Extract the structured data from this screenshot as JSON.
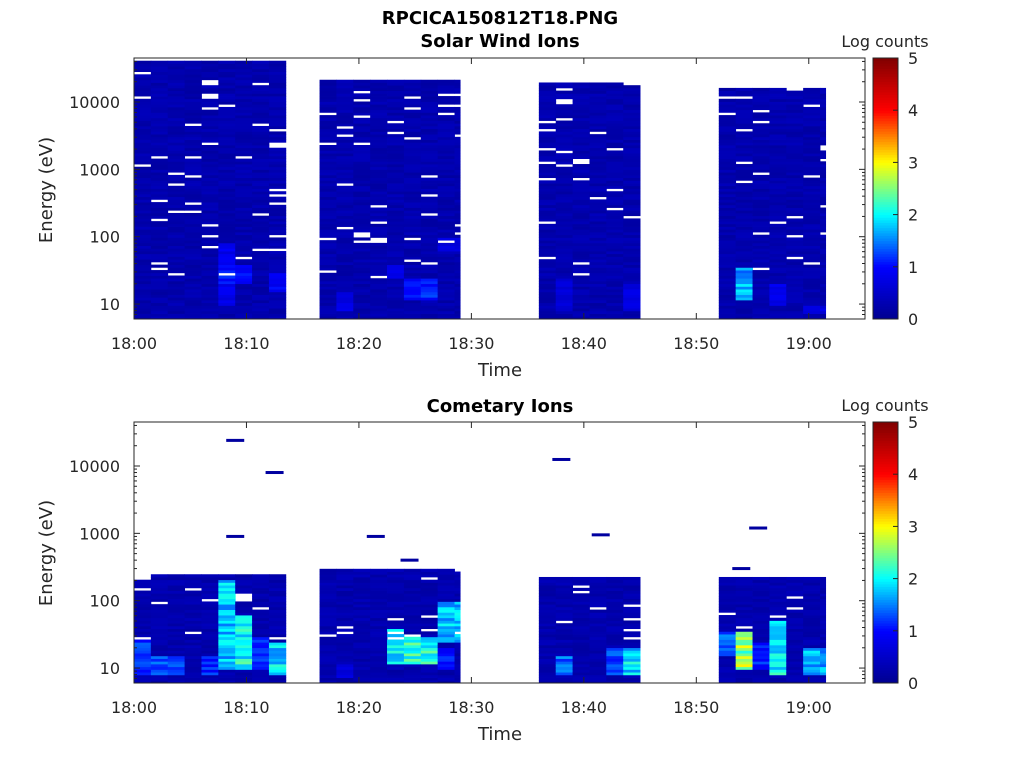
{
  "figure_title": "RPCICA150812T18.PNG",
  "colorscale": [
    "#00008f",
    "#0000ff",
    "#00ffff",
    "#ffff00",
    "#ff0000",
    "#800000"
  ],
  "chart_data": [
    {
      "type": "heatmap",
      "title": "Solar Wind Ions",
      "xlabel": "Time",
      "ylabel": "Energy (eV)",
      "yscale": "log",
      "ylim": [
        6,
        45000
      ],
      "xlim": [
        "18:00",
        "19:05"
      ],
      "xticks": [
        "18:00",
        "18:10",
        "18:20",
        "18:30",
        "18:40",
        "18:50",
        "19:00"
      ],
      "yticks": [
        "10",
        "100",
        "1000",
        "10000"
      ],
      "colorbar": {
        "label": "Log counts",
        "range": [
          0,
          5
        ],
        "ticks": [
          "0",
          "1",
          "2",
          "3",
          "4",
          "5"
        ]
      },
      "data_segments": [
        {
          "start": "18:00",
          "end": "18:13.5",
          "emax": 40000
        },
        {
          "start": "18:16.5",
          "end": "18:29",
          "emax": 22000
        },
        {
          "start": "18:36",
          "end": "18:45",
          "emax": 20000
        },
        {
          "start": "18:52",
          "end": "19:01.5",
          "emax": 16000
        }
      ],
      "background_log_counts": 0.15,
      "enhancements": [
        {
          "time": "18:08",
          "energy": [
            10,
            80
          ],
          "log_counts": 0.9
        },
        {
          "time": "18:09",
          "energy": [
            20,
            40
          ],
          "log_counts": 1.1
        },
        {
          "time": "18:12.5",
          "energy": [
            15,
            30
          ],
          "log_counts": 1.0
        },
        {
          "time": "18:18.5",
          "energy": [
            8,
            15
          ],
          "log_counts": 0.8
        },
        {
          "time": "18:23.5",
          "energy": [
            25,
            40
          ],
          "log_counts": 0.9
        },
        {
          "time": "18:25.5",
          "energy": [
            12,
            25
          ],
          "log_counts": 1.2
        },
        {
          "time": "18:28.5",
          "energy": [
            60,
            100
          ],
          "log_counts": 0.8
        },
        {
          "time": "18:38.5",
          "energy": [
            8,
            25
          ],
          "log_counts": 0.7
        },
        {
          "time": "18:44.5",
          "energy": [
            8,
            20
          ],
          "log_counts": 0.8
        },
        {
          "time": "18:54",
          "energy": [
            12,
            35
          ],
          "log_counts": 1.8
        },
        {
          "time": "18:57.5",
          "energy": [
            10,
            20
          ],
          "log_counts": 0.9
        },
        {
          "time": "19:00.5",
          "energy": [
            7,
            10
          ],
          "log_counts": 0.8
        }
      ]
    },
    {
      "type": "heatmap",
      "title": "Cometary Ions",
      "xlabel": "Time",
      "ylabel": "Energy (eV)",
      "yscale": "log",
      "ylim": [
        6,
        45000
      ],
      "xlim": [
        "18:00",
        "19:05"
      ],
      "xticks": [
        "18:00",
        "18:10",
        "18:20",
        "18:30",
        "18:40",
        "18:50",
        "19:00"
      ],
      "yticks": [
        "10",
        "100",
        "1000",
        "10000"
      ],
      "colorbar": {
        "label": "Log counts",
        "range": [
          0,
          5
        ],
        "ticks": [
          "0",
          "1",
          "2",
          "3",
          "4",
          "5"
        ]
      },
      "data_segments": [
        {
          "start": "18:00",
          "end": "18:13.5",
          "emax": 250
        },
        {
          "start": "18:16.5",
          "end": "18:29",
          "emax": 300
        },
        {
          "start": "18:36",
          "end": "18:45",
          "emax": 220
        },
        {
          "start": "18:52",
          "end": "19:01.5",
          "emax": 220
        }
      ],
      "background_log_counts": 0.15,
      "isolated_points": [
        {
          "time": "18:09",
          "energy": 24000
        },
        {
          "time": "18:12.5",
          "energy": 8000
        },
        {
          "time": "18:09",
          "energy": 900
        },
        {
          "time": "18:21.5",
          "energy": 900
        },
        {
          "time": "18:24.5",
          "energy": 400
        },
        {
          "time": "18:38",
          "energy": 12500
        },
        {
          "time": "18:41.5",
          "energy": 950
        },
        {
          "time": "18:55.5",
          "energy": 1200
        },
        {
          "time": "18:54",
          "energy": 300
        }
      ],
      "enhancements": [
        {
          "time": "18:00.5",
          "energy": [
            8,
            30
          ],
          "log_counts": 1.3
        },
        {
          "time": "18:03",
          "energy": [
            8,
            15
          ],
          "log_counts": 1.4
        },
        {
          "time": "18:06.5",
          "energy": [
            8,
            15
          ],
          "log_counts": 1.2
        },
        {
          "time": "18:08",
          "energy": [
            10,
            200
          ],
          "log_counts": 1.9
        },
        {
          "time": "18:09.5",
          "energy": [
            10,
            60
          ],
          "log_counts": 2.2
        },
        {
          "time": "18:11",
          "energy": [
            10,
            30
          ],
          "log_counts": 1.3
        },
        {
          "time": "18:12.5",
          "energy": [
            8,
            25
          ],
          "log_counts": 2.0
        },
        {
          "time": "18:18.5",
          "energy": [
            7,
            12
          ],
          "log_counts": 0.8
        },
        {
          "time": "18:23.5",
          "energy": [
            12,
            40
          ],
          "log_counts": 2.0
        },
        {
          "time": "18:25.5",
          "energy": [
            12,
            30
          ],
          "log_counts": 2.3
        },
        {
          "time": "18:27.5",
          "energy": [
            10,
            20
          ],
          "log_counts": 1.2
        },
        {
          "time": "18:28.5",
          "energy": [
            25,
            100
          ],
          "log_counts": 1.9
        },
        {
          "time": "18:38.5",
          "energy": [
            8,
            15
          ],
          "log_counts": 1.5
        },
        {
          "time": "18:43",
          "energy": [
            8,
            20
          ],
          "log_counts": 1.4
        },
        {
          "time": "18:44.5",
          "energy": [
            8,
            20
          ],
          "log_counts": 2.0
        },
        {
          "time": "18:53",
          "energy": [
            15,
            35
          ],
          "log_counts": 1.5
        },
        {
          "time": "18:54.5",
          "energy": [
            10,
            35
          ],
          "log_counts": 2.8
        },
        {
          "time": "18:56",
          "energy": [
            10,
            25
          ],
          "log_counts": 1.2
        },
        {
          "time": "18:57.5",
          "energy": [
            8,
            50
          ],
          "log_counts": 2.1
        },
        {
          "time": "19:00.5",
          "energy": [
            8,
            20
          ],
          "log_counts": 1.8
        }
      ]
    }
  ]
}
